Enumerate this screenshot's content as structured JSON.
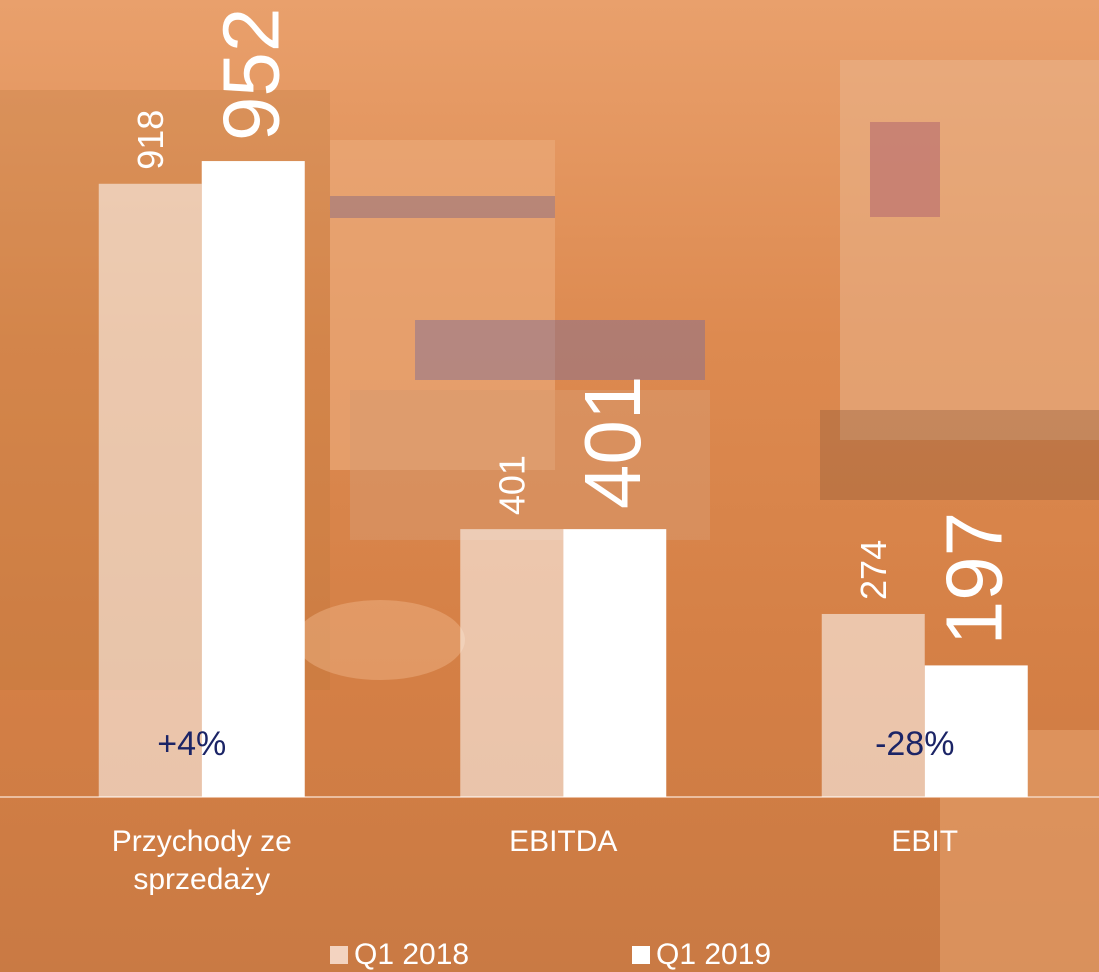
{
  "chart_data": {
    "type": "bar",
    "categories": [
      "Przychody ze sprzedaży",
      "EBITDA",
      "EBIT"
    ],
    "series": [
      {
        "name": "Q1 2018",
        "color": "rgba(255,255,255,0.55)",
        "values": [
          918,
          401,
          274
        ]
      },
      {
        "name": "Q1 2019",
        "color": "#ffffff",
        "values": [
          952,
          401,
          197
        ]
      }
    ],
    "change_labels": [
      "+4%",
      null,
      "-28%"
    ],
    "ylim": [
      0,
      1000
    ],
    "legend": "bottom"
  }
}
